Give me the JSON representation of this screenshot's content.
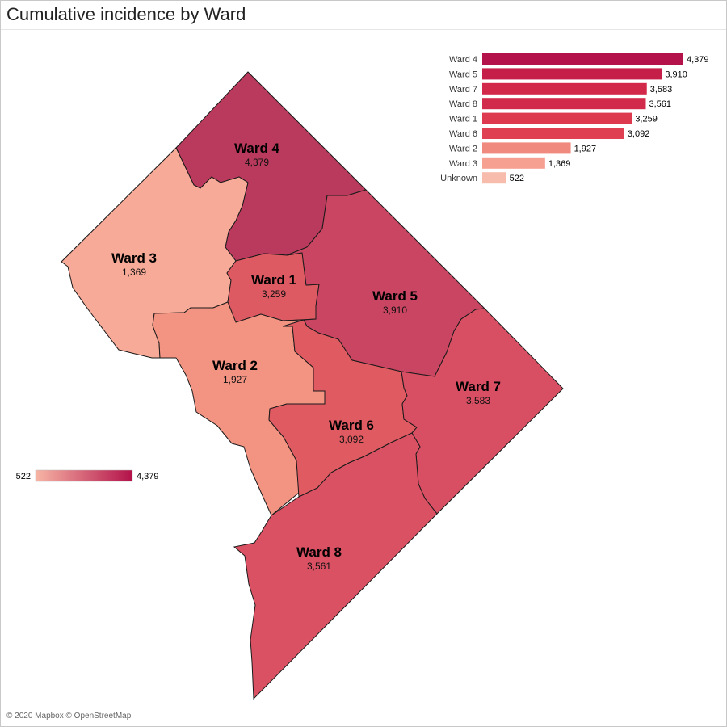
{
  "title": "Cumulative incidence by Ward",
  "attribution": "© 2020 Mapbox © OpenStreetMap",
  "color_scale": {
    "min": 522,
    "max": 4379,
    "min_label": "522",
    "max_label": "4,379",
    "low_color": "#f7b5a5",
    "high_color": "#b3124a"
  },
  "wards": [
    {
      "id": "ward4",
      "name": "Ward 4",
      "value": 4379,
      "value_label": "4,379",
      "fill": "#b93a5c"
    },
    {
      "id": "ward3",
      "name": "Ward 3",
      "value": 1369,
      "value_label": "1,369",
      "fill": "#f7aa97"
    },
    {
      "id": "ward1",
      "name": "Ward 1",
      "value": 3259,
      "value_label": "3,259",
      "fill": "#de5a63"
    },
    {
      "id": "ward5",
      "name": "Ward 5",
      "value": 3910,
      "value_label": "3,910",
      "fill": "#ca4562"
    },
    {
      "id": "ward2",
      "name": "Ward 2",
      "value": 1927,
      "value_label": "1,927",
      "fill": "#f39483"
    },
    {
      "id": "ward6",
      "name": "Ward 6",
      "value": 3092,
      "value_label": "3,092",
      "fill": "#e05b61"
    },
    {
      "id": "ward7",
      "name": "Ward 7",
      "value": 3583,
      "value_label": "3,583",
      "fill": "#d84f63"
    },
    {
      "id": "ward8",
      "name": "Ward 8",
      "value": 3561,
      "value_label": "3,561",
      "fill": "#da5163"
    }
  ],
  "chart_data": {
    "type": "bar",
    "orientation": "horizontal",
    "categories": [
      "Ward 4",
      "Ward 5",
      "Ward 7",
      "Ward 8",
      "Ward 1",
      "Ward 6",
      "Ward 2",
      "Ward 3",
      "Unknown"
    ],
    "values": [
      4379,
      3910,
      3583,
      3561,
      3259,
      3092,
      1927,
      1369,
      522
    ],
    "value_labels": [
      "4,379",
      "3,910",
      "3,583",
      "3,561",
      "3,259",
      "3,092",
      "1,927",
      "1,369",
      "522"
    ],
    "colors": [
      "#b3124a",
      "#c51e48",
      "#d2284a",
      "#d22a4b",
      "#dd3a4f",
      "#df4152",
      "#f08a7e",
      "#f6a091",
      "#f8bcad"
    ]
  }
}
